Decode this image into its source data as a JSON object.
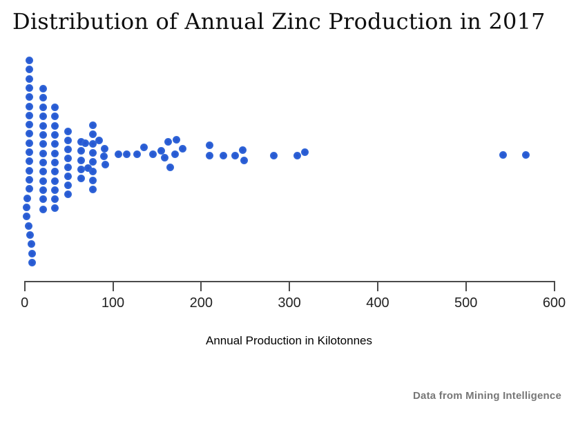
{
  "title": "Distribution of Annual Zinc Production in 2017",
  "source_note": "Data from Mining Intelligence",
  "chart_data": {
    "type": "scatter",
    "subtype": "beeswarm-strip-plot",
    "title": "Distribution of Annual Zinc Production in 2017",
    "xlabel": "Annual Production in Kilotonnes",
    "ylabel": "",
    "xlim": [
      0,
      600
    ],
    "x_ticks": [
      0,
      100,
      200,
      300,
      400,
      500,
      600
    ],
    "grid": false,
    "legend": "none",
    "n_points": 99,
    "values_kilotonnes": [
      6,
      6,
      6,
      6,
      6,
      6,
      6,
      6,
      6,
      6,
      6,
      6,
      6,
      6,
      6,
      3,
      2,
      3,
      4,
      6,
      7,
      8,
      9,
      21,
      21,
      21,
      21,
      21,
      21,
      21,
      21,
      21,
      21,
      21,
      21,
      21,
      21,
      35,
      35,
      35,
      35,
      35,
      35,
      35,
      35,
      35,
      35,
      35,
      35,
      50,
      50,
      50,
      50,
      50,
      50,
      50,
      50,
      64,
      64,
      64,
      64,
      64,
      68,
      71,
      77,
      77,
      77,
      77,
      77,
      77,
      77,
      77,
      85,
      90,
      89,
      92,
      106,
      115,
      127,
      135,
      146,
      155,
      159,
      162,
      165,
      170,
      172,
      179,
      209,
      209,
      225,
      238,
      247,
      249,
      282,
      309,
      318,
      542,
      568
    ],
    "points": [
      [
        5.71,
        -137
      ],
      [
        5.71,
        -124
      ],
      [
        5.71,
        -110
      ],
      [
        5.71,
        -97
      ],
      [
        5.71,
        -84
      ],
      [
        5.71,
        -70
      ],
      [
        5.71,
        -57
      ],
      [
        5.71,
        -44
      ],
      [
        5.71,
        -31
      ],
      [
        5.71,
        -17
      ],
      [
        5.71,
        -4
      ],
      [
        5.71,
        9
      ],
      [
        5.71,
        23
      ],
      [
        5.71,
        36
      ],
      [
        5.71,
        49
      ],
      [
        3.36,
        63
      ],
      [
        1.8,
        76
      ],
      [
        2.58,
        89
      ],
      [
        4.15,
        103
      ],
      [
        6.49,
        116
      ],
      [
        7.28,
        129
      ],
      [
        8.06,
        143
      ],
      [
        8.84,
        156
      ],
      [
        20.58,
        -96
      ],
      [
        20.58,
        -83
      ],
      [
        20.58,
        -69
      ],
      [
        20.58,
        -56
      ],
      [
        20.58,
        -42
      ],
      [
        20.58,
        -29
      ],
      [
        20.58,
        -16
      ],
      [
        20.58,
        -2
      ],
      [
        20.58,
        11
      ],
      [
        20.58,
        24
      ],
      [
        20.58,
        38
      ],
      [
        20.58,
        51
      ],
      [
        20.58,
        64
      ],
      [
        20.58,
        79
      ],
      [
        34.66,
        -69
      ],
      [
        34.66,
        -56
      ],
      [
        34.66,
        -42
      ],
      [
        34.66,
        -29
      ],
      [
        34.66,
        -16
      ],
      [
        34.66,
        -2
      ],
      [
        34.66,
        11
      ],
      [
        34.66,
        24
      ],
      [
        34.66,
        38
      ],
      [
        34.66,
        51
      ],
      [
        34.66,
        64
      ],
      [
        34.66,
        77
      ],
      [
        49.53,
        -34
      ],
      [
        49.53,
        -21
      ],
      [
        49.53,
        -8
      ],
      [
        49.53,
        5
      ],
      [
        49.53,
        18
      ],
      [
        49.53,
        31
      ],
      [
        49.53,
        44
      ],
      [
        49.53,
        57
      ],
      [
        63.62,
        -19
      ],
      [
        63.62,
        -6
      ],
      [
        63.62,
        8
      ],
      [
        63.62,
        21
      ],
      [
        63.62,
        34
      ],
      [
        68.31,
        -17
      ],
      [
        71.44,
        19
      ],
      [
        76.92,
        -43
      ],
      [
        76.92,
        -30
      ],
      [
        76.92,
        -16
      ],
      [
        76.92,
        -3
      ],
      [
        76.92,
        10
      ],
      [
        76.92,
        24
      ],
      [
        76.92,
        37
      ],
      [
        76.92,
        50
      ],
      [
        84.74,
        -21
      ],
      [
        90.22,
        -9
      ],
      [
        89.44,
        2
      ],
      [
        91.78,
        14
      ],
      [
        106.42,
        -1
      ],
      [
        115.49,
        -1
      ],
      [
        127.23,
        -1
      ],
      [
        135.05,
        -11
      ],
      [
        145.54,
        -1
      ],
      [
        154.62,
        -6
      ],
      [
        158.53,
        4
      ],
      [
        162.44,
        -19
      ],
      [
        165.1,
        18
      ],
      [
        170.27,
        -1
      ],
      [
        171.6,
        -22
      ],
      [
        179.42,
        -9
      ],
      [
        209.39,
        -14
      ],
      [
        209.39,
        1
      ],
      [
        225.04,
        1
      ],
      [
        238.11,
        1
      ],
      [
        247.26,
        -7
      ],
      [
        248.51,
        8
      ],
      [
        282.47,
        1
      ],
      [
        308.53,
        1
      ],
      [
        317.68,
        -4
      ],
      [
        541.94,
        0
      ],
      [
        568.08,
        0
      ]
    ],
    "colors": {
      "dot": "#2e62d6",
      "axis": "#4a4a4a",
      "tick_label": "#222222",
      "title": "#0f0f0f",
      "source_note": "#777777",
      "background": "#ffffff"
    }
  }
}
